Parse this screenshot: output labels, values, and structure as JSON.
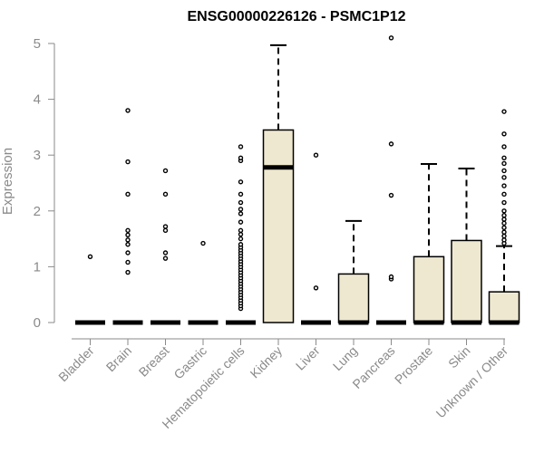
{
  "chart_data": {
    "type": "box",
    "title": "ENSG00000226126 - PSMC1P12",
    "ylabel": "Expression",
    "xlabel": "",
    "ylim": [
      0,
      5
    ],
    "yticks": [
      0,
      1,
      2,
      3,
      4,
      5
    ],
    "box_fill": "#efe8d0",
    "box_stroke": "#000000",
    "categories": [
      "Bladder",
      "Brain",
      "Breast",
      "Gastric",
      "Hematopoietic cells",
      "Kidney",
      "Liver",
      "Lung",
      "Pancreas",
      "Prostate",
      "Skin",
      "Unknown / Other"
    ],
    "boxes": [
      {
        "category": "Bladder",
        "q1": 0,
        "median": 0,
        "q3": 0,
        "whisker_high": 0,
        "outliers": [
          1.18
        ]
      },
      {
        "category": "Brain",
        "q1": 0,
        "median": 0,
        "q3": 0,
        "whisker_high": 0,
        "outliers": [
          0.9,
          1.08,
          1.25,
          1.4,
          1.48,
          1.57,
          1.65,
          2.3,
          2.88,
          3.8
        ]
      },
      {
        "category": "Breast",
        "q1": 0,
        "median": 0,
        "q3": 0,
        "whisker_high": 0,
        "outliers": [
          1.15,
          1.25,
          1.65,
          1.72,
          2.3,
          2.72
        ]
      },
      {
        "category": "Gastric",
        "q1": 0,
        "median": 0,
        "q3": 0,
        "whisker_high": 0,
        "outliers": [
          1.42
        ]
      },
      {
        "category": "Hematopoietic cells",
        "q1": 0,
        "median": 0,
        "q3": 0,
        "whisker_high": 0,
        "outliers": [
          0.25,
          0.3,
          0.35,
          0.4,
          0.45,
          0.5,
          0.55,
          0.6,
          0.65,
          0.7,
          0.75,
          0.8,
          0.85,
          0.9,
          0.95,
          1.0,
          1.05,
          1.1,
          1.15,
          1.2,
          1.25,
          1.3,
          1.35,
          1.4,
          1.5,
          1.58,
          1.65,
          1.8,
          1.95,
          2.03,
          2.15,
          2.3,
          2.52,
          2.9,
          2.95,
          3.15
        ]
      },
      {
        "category": "Kidney",
        "q1": 0,
        "median": 2.78,
        "q3": 3.45,
        "whisker_high": 4.97,
        "outliers": []
      },
      {
        "category": "Liver",
        "q1": 0,
        "median": 0,
        "q3": 0,
        "whisker_high": 0,
        "outliers": [
          0.62,
          3.0
        ]
      },
      {
        "category": "Lung",
        "q1": 0,
        "median": 0,
        "q3": 0.87,
        "whisker_high": 1.82,
        "outliers": []
      },
      {
        "category": "Pancreas",
        "q1": 0,
        "median": 0,
        "q3": 0,
        "whisker_high": 0,
        "outliers": [
          0.78,
          0.82,
          2.28,
          3.2,
          5.1
        ]
      },
      {
        "category": "Prostate",
        "q1": 0,
        "median": 0,
        "q3": 1.18,
        "whisker_high": 2.84,
        "outliers": []
      },
      {
        "category": "Skin",
        "q1": 0,
        "median": 0,
        "q3": 1.47,
        "whisker_high": 2.76,
        "outliers": []
      },
      {
        "category": "Unknown / Other",
        "q1": 0,
        "median": 0,
        "q3": 0.55,
        "whisker_high": 1.37,
        "outliers": [
          1.42,
          1.48,
          1.55,
          1.62,
          1.7,
          1.78,
          1.85,
          1.92,
          2.0,
          2.15,
          2.3,
          2.45,
          2.6,
          2.72,
          2.85,
          2.95,
          3.15,
          3.38,
          3.78
        ]
      }
    ]
  }
}
